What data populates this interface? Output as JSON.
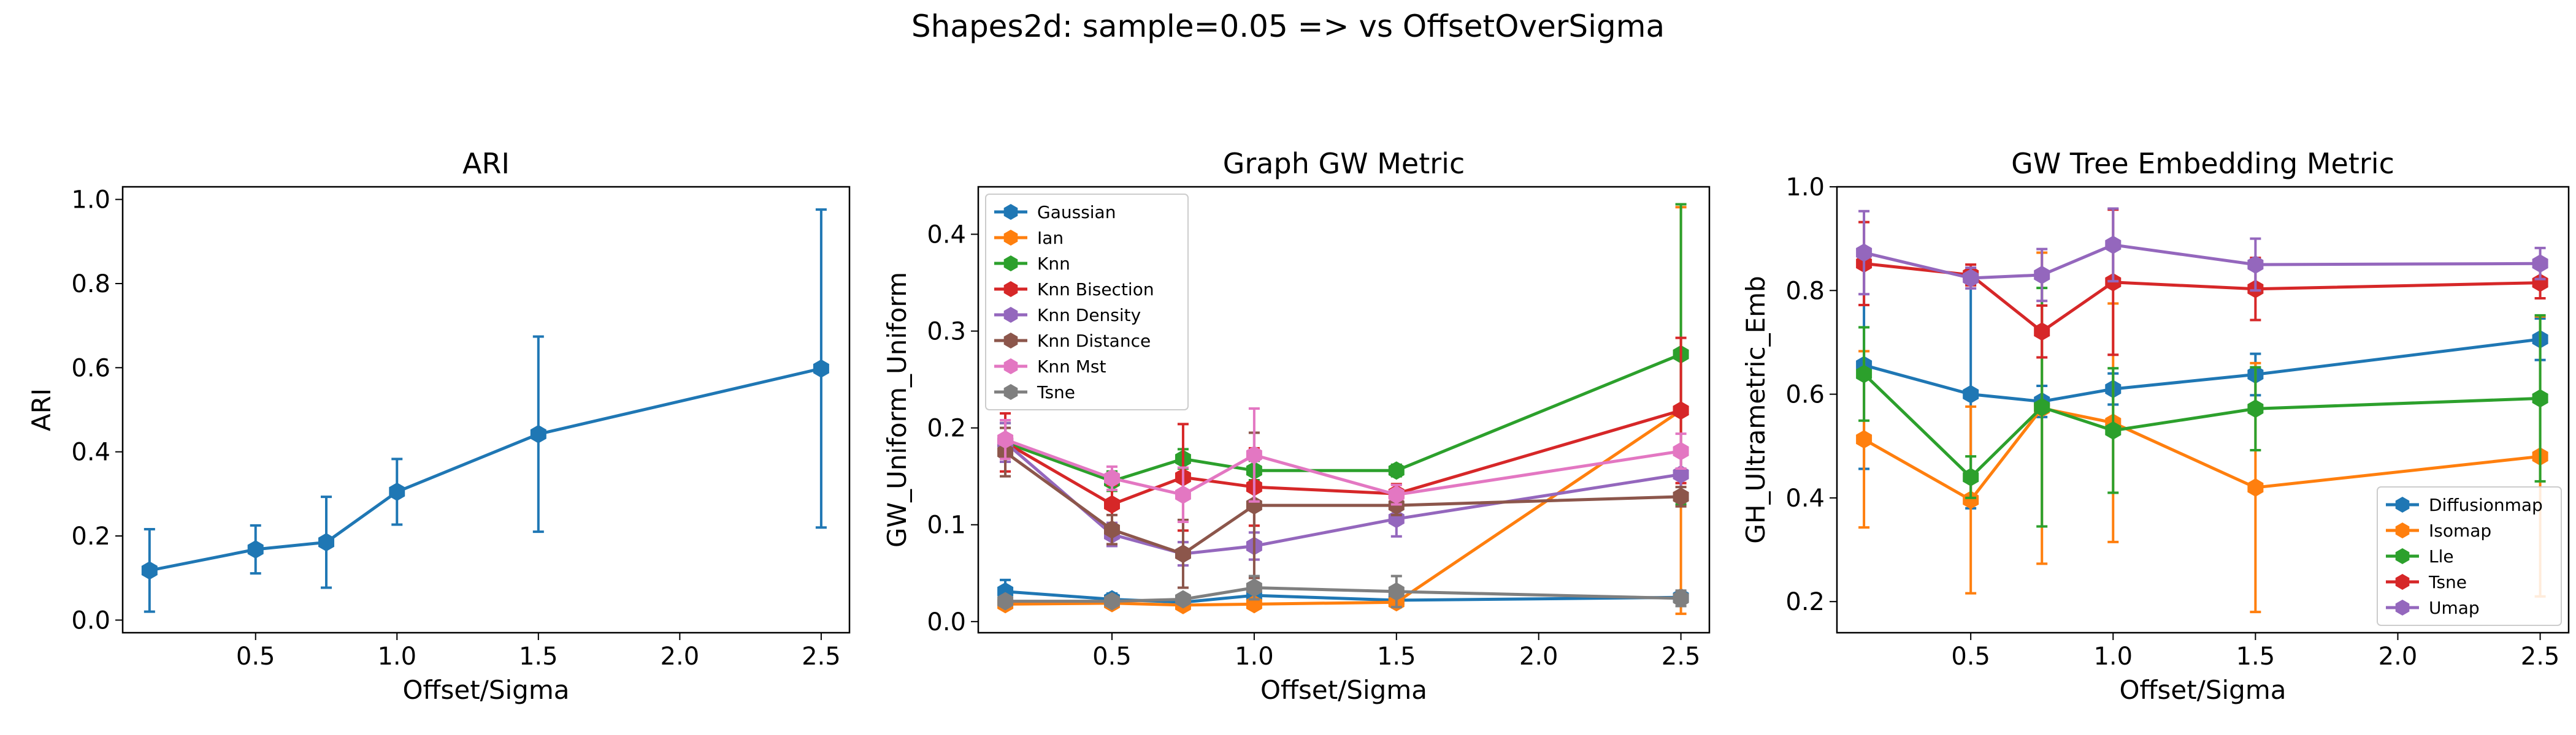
{
  "suptitle": "Shapes2d: sample=0.05 => vs OffsetOverSigma",
  "colors": {
    "blue": "#1f77b4",
    "orange": "#ff7f0e",
    "green": "#2ca02c",
    "red": "#d62728",
    "purple": "#9467bd",
    "brown": "#8c564b",
    "pink": "#e377c2",
    "gray": "#7f7f7f"
  },
  "chart_data": [
    {
      "type": "line",
      "title": "ARI",
      "xlabel": "Offset/Sigma",
      "ylabel": "ARI",
      "xlim": [
        0.03,
        2.6
      ],
      "ylim": [
        -0.03,
        1.03
      ],
      "xticks": [
        0.5,
        1.0,
        1.5,
        2.0,
        2.5
      ],
      "xtick_labels": [
        "0.5",
        "1.0",
        "1.5",
        "2.0",
        "2.5"
      ],
      "yticks": [
        0.0,
        0.2,
        0.4,
        0.6,
        0.8,
        1.0
      ],
      "ytick_labels": [
        "0.0",
        "0.2",
        "0.4",
        "0.6",
        "0.8",
        "1.0"
      ],
      "legend": null,
      "series": [
        {
          "color": "blue",
          "x": [
            0.125,
            0.5,
            0.75,
            1.0,
            1.5,
            2.5
          ],
          "y": [
            0.118,
            0.168,
            0.185,
            0.305,
            0.442,
            0.598
          ],
          "err": [
            0.098,
            0.057,
            0.108,
            0.078,
            0.232,
            0.378
          ]
        }
      ]
    },
    {
      "type": "line",
      "title": "Graph GW Metric",
      "xlabel": "Offset/Sigma",
      "ylabel": "GW_Uniform_Uniform",
      "xlim": [
        0.03,
        2.6
      ],
      "ylim": [
        -0.0115,
        0.449
      ],
      "xticks": [
        0.5,
        1.0,
        1.5,
        2.0,
        2.5
      ],
      "xtick_labels": [
        "0.5",
        "1.0",
        "1.5",
        "2.0",
        "2.5"
      ],
      "yticks": [
        0.0,
        0.1,
        0.2,
        0.3,
        0.4
      ],
      "ytick_labels": [
        "0.0",
        "0.1",
        "0.2",
        "0.3",
        "0.4"
      ],
      "legend": "top-left",
      "series": [
        {
          "name": "Gaussian",
          "color": "blue",
          "x": [
            0.125,
            0.5,
            0.75,
            1.0,
            1.5,
            2.5
          ],
          "y": [
            0.031,
            0.023,
            0.02,
            0.027,
            0.022,
            0.025
          ],
          "err": [
            0.012,
            0.006,
            0.006,
            0.008,
            0.006,
            0.006
          ]
        },
        {
          "name": "Ian",
          "color": "orange",
          "x": [
            0.125,
            0.5,
            0.75,
            1.0,
            1.5,
            2.5
          ],
          "y": [
            0.018,
            0.019,
            0.017,
            0.018,
            0.02,
            0.218
          ],
          "err": [
            0.004,
            0.004,
            0.004,
            0.004,
            0.005,
            0.21
          ]
        },
        {
          "name": "Knn",
          "color": "green",
          "x": [
            0.125,
            0.5,
            0.75,
            1.0,
            1.5,
            2.5
          ],
          "y": [
            0.185,
            0.145,
            0.168,
            0.156,
            0.156,
            0.276
          ],
          "err": [
            0.02,
            0.01,
            0.01,
            0.01,
            0.006,
            0.155
          ]
        },
        {
          "name": "Knn Bisection",
          "color": "red",
          "x": [
            0.125,
            0.5,
            0.75,
            1.0,
            1.5,
            2.5
          ],
          "y": [
            0.185,
            0.121,
            0.149,
            0.139,
            0.132,
            0.218
          ],
          "err": [
            0.03,
            0.02,
            0.055,
            0.04,
            0.01,
            0.075
          ]
        },
        {
          "name": "Knn Density",
          "color": "purple",
          "x": [
            0.125,
            0.5,
            0.75,
            1.0,
            1.5,
            2.5
          ],
          "y": [
            0.185,
            0.09,
            0.07,
            0.078,
            0.106,
            0.152
          ],
          "err": [
            0.02,
            0.012,
            0.012,
            0.014,
            0.018,
            0.02
          ]
        },
        {
          "name": "Knn Distance",
          "color": "brown",
          "x": [
            0.125,
            0.5,
            0.75,
            1.0,
            1.5,
            2.5
          ],
          "y": [
            0.175,
            0.095,
            0.07,
            0.12,
            0.12,
            0.129
          ],
          "err": [
            0.025,
            0.015,
            0.035,
            0.075,
            0.01,
            0.01
          ]
        },
        {
          "name": "Knn Mst",
          "color": "pink",
          "x": [
            0.125,
            0.5,
            0.75,
            1.0,
            1.5,
            2.5
          ],
          "y": [
            0.188,
            0.148,
            0.131,
            0.172,
            0.131,
            0.176
          ],
          "err": [
            0.02,
            0.012,
            0.028,
            0.048,
            0.01,
            0.018
          ]
        },
        {
          "name": "Tsne",
          "color": "gray",
          "x": [
            0.125,
            0.5,
            0.75,
            1.0,
            1.5,
            2.5
          ],
          "y": [
            0.021,
            0.021,
            0.023,
            0.035,
            0.031,
            0.024
          ],
          "err": [
            0.005,
            0.005,
            0.005,
            0.012,
            0.016,
            0.008
          ]
        }
      ]
    },
    {
      "type": "line",
      "title": "GW Tree Embedding Metric",
      "xlabel": "Offset/Sigma",
      "ylabel": "GH_Ultrametric_Emb",
      "xlim": [
        0.03,
        2.6
      ],
      "ylim": [
        0.14,
        1.0
      ],
      "xticks": [
        0.5,
        1.0,
        1.5,
        2.0,
        2.5
      ],
      "xtick_labels": [
        "0.5",
        "1.0",
        "1.5",
        "2.0",
        "2.5"
      ],
      "yticks": [
        0.2,
        0.4,
        0.6,
        0.8,
        1.0
      ],
      "ytick_labels": [
        "0.2",
        "0.4",
        "0.6",
        "0.8",
        "1.0"
      ],
      "legend": "bottom-right",
      "series": [
        {
          "name": "Diffusionmap",
          "color": "blue",
          "x": [
            0.125,
            0.5,
            0.75,
            1.0,
            1.5,
            2.5
          ],
          "y": [
            0.656,
            0.6,
            0.586,
            0.61,
            0.638,
            0.706
          ],
          "err": [
            0.2,
            0.22,
            0.03,
            0.03,
            0.04,
            0.04
          ]
        },
        {
          "name": "Isomap",
          "color": "orange",
          "x": [
            0.125,
            0.5,
            0.75,
            1.0,
            1.5,
            2.5
          ],
          "y": [
            0.513,
            0.396,
            0.573,
            0.545,
            0.42,
            0.48
          ],
          "err": [
            0.17,
            0.18,
            0.3,
            0.23,
            0.24,
            0.27
          ]
        },
        {
          "name": "Lle",
          "color": "green",
          "x": [
            0.125,
            0.5,
            0.75,
            1.0,
            1.5,
            2.5
          ],
          "y": [
            0.639,
            0.44,
            0.575,
            0.53,
            0.572,
            0.592
          ],
          "err": [
            0.09,
            0.04,
            0.23,
            0.12,
            0.08,
            0.16
          ]
        },
        {
          "name": "Tsne",
          "color": "red",
          "x": [
            0.125,
            0.5,
            0.75,
            1.0,
            1.5,
            2.5
          ],
          "y": [
            0.852,
            0.83,
            0.721,
            0.816,
            0.803,
            0.815
          ],
          "err": [
            0.08,
            0.02,
            0.05,
            0.14,
            0.06,
            0.03
          ]
        },
        {
          "name": "Umap",
          "color": "purple",
          "x": [
            0.125,
            0.5,
            0.75,
            1.0,
            1.5,
            2.5
          ],
          "y": [
            0.873,
            0.824,
            0.83,
            0.888,
            0.85,
            0.852
          ],
          "err": [
            0.08,
            0.02,
            0.05,
            0.07,
            0.05,
            0.03
          ]
        }
      ]
    }
  ]
}
